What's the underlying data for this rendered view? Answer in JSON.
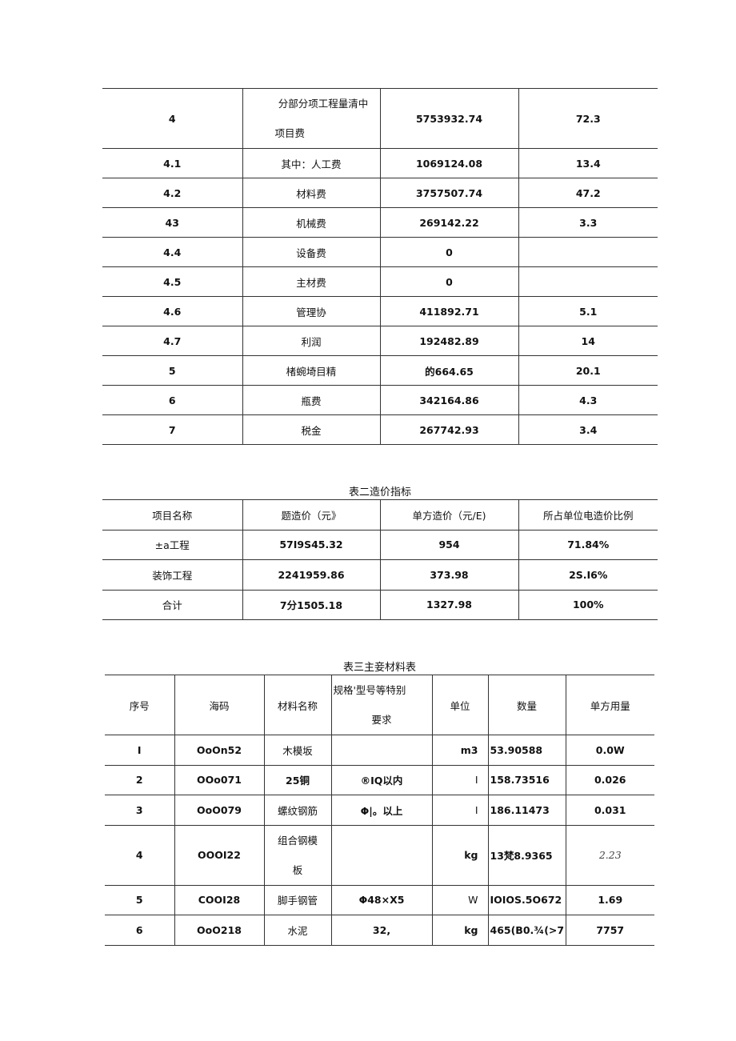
{
  "table1": {
    "rows": [
      {
        "no": "4",
        "name_line1": "分部分项工程量清中",
        "name_line2": "项目费",
        "amount": "5753932.74",
        "ratio": "72.3"
      },
      {
        "no": "4.1",
        "name": "其中：人工费",
        "amount": "1069124.08",
        "ratio": "13.4"
      },
      {
        "no": "4.2",
        "name": "材料费",
        "amount": "3757507.74",
        "ratio": "47.2"
      },
      {
        "no": "43",
        "name": "机械费",
        "amount": "269142.22",
        "ratio": "3.3"
      },
      {
        "no": "4.4",
        "name": "设备费",
        "amount": "0",
        "ratio": ""
      },
      {
        "no": "4.5",
        "name": "主材费",
        "amount": "0",
        "ratio": ""
      },
      {
        "no": "4.6",
        "name": "管理协",
        "amount": "411892.71",
        "ratio": "5.1"
      },
      {
        "no": "4.7",
        "name": "利润",
        "amount": "192482.89",
        "ratio": "14"
      },
      {
        "no": "5",
        "name": "楮蜿埼目精",
        "amount": "的664.65",
        "ratio": "20.1"
      },
      {
        "no": "6",
        "name": "瓶费",
        "amount": "342164.86",
        "ratio": "4.3"
      },
      {
        "no": "7",
        "name": "税金",
        "amount": "267742.93",
        "ratio": "3.4"
      }
    ]
  },
  "table2": {
    "caption": "表二造价指标",
    "headers": [
      "项目名称",
      "题造价（元》",
      "单方造价（元/E)",
      "所占单位电造价比例"
    ],
    "rows": [
      [
        "±a工程",
        "57I9S45.32",
        "954",
        "71.84%"
      ],
      [
        "装饰工程",
        "2241959.86",
        "373.98",
        "2S.I6%"
      ],
      [
        "合计",
        "7分1505.18",
        "1327.98",
        "100%"
      ]
    ]
  },
  "table3": {
    "caption": "表三主妾材料表",
    "headers": [
      "序号",
      "海码",
      "材料名称",
      "规格'型号等特别",
      "要求",
      "单位",
      "数量",
      "单方用量"
    ],
    "rows": [
      {
        "no": "I",
        "code": "OoOn52",
        "name": "木模坂",
        "spec": "",
        "unit": "m3",
        "qty": "53.90588",
        "per": "0.0W"
      },
      {
        "no": "2",
        "code": "OOo071",
        "name": "25铜",
        "spec": "®IQ以内",
        "unit": "I",
        "qty": "158.73516",
        "per": "0.026"
      },
      {
        "no": "3",
        "code": "OoO079",
        "name": "螺纹钢筋",
        "spec": "Φ|。以上",
        "unit": "I",
        "qty": "186.11473",
        "per": "0.031"
      },
      {
        "no": "4",
        "code": "OOOI22",
        "name_line1": "组合钢模",
        "name_line2": "板",
        "spec": "",
        "unit": "kg",
        "qty": "13梵8.9365",
        "per": "2.23"
      },
      {
        "no": "5",
        "code": "COOI28",
        "name": "脚手钢管",
        "spec": "Φ48×X5",
        "unit": "W",
        "qty": "IOIOS.5O672",
        "per": "1.69"
      },
      {
        "no": "6",
        "code": "OoO218",
        "name": "水泥",
        "spec": "32,",
        "unit": "kg",
        "qty": "465(B0.¾(>7",
        "per": "7757"
      }
    ]
  }
}
